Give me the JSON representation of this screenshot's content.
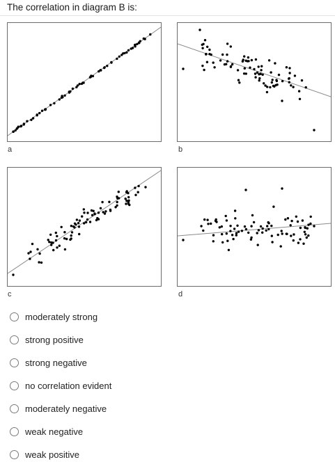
{
  "question": "The correlation in diagram B is:",
  "diagrams": [
    {
      "label": "a"
    },
    {
      "label": "b"
    },
    {
      "label": "c"
    },
    {
      "label": "d"
    }
  ],
  "options": [
    "moderately strong",
    "strong positive",
    "strong negative",
    "no correlation evident",
    "moderately negative",
    "weak negative",
    "weak positive"
  ]
}
